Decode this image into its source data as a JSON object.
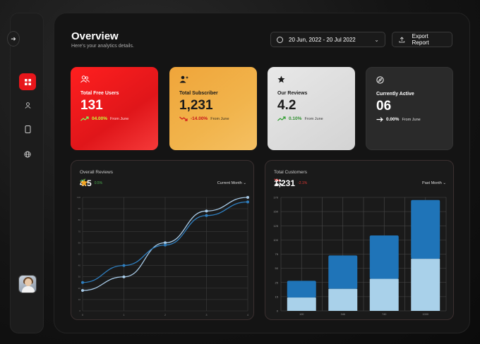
{
  "header": {
    "title": "Overview",
    "subtitle": "Here's your analytics details.",
    "date_range": "20 Jun, 2022 - 20 Jul 2022",
    "export_label": "Export Report"
  },
  "cards": [
    {
      "label": "Total Free Users",
      "value": "131",
      "pct": "04.00%",
      "from": "From June",
      "direction": "up",
      "icon": "users-icon"
    },
    {
      "label": "Total Subscriber",
      "value": "1,231",
      "pct": "-14.00%",
      "from": "From June",
      "direction": "down",
      "icon": "subscriber-icon"
    },
    {
      "label": "Our Reviews",
      "value": "4.2",
      "pct": "0.10%",
      "from": "From June",
      "direction": "up",
      "icon": "star-icon"
    },
    {
      "label": "Currently Active",
      "value": "06",
      "pct": "0.00%",
      "from": "From June",
      "direction": "flat",
      "icon": "compass-icon"
    }
  ],
  "reviews_panel": {
    "title": "Overall Reviews",
    "value": "4.5",
    "change": "0.5%",
    "select": "Current Month"
  },
  "customers_panel": {
    "title": "Total Customers",
    "value": "1,231",
    "change": "-2.1%",
    "select": "Past Month"
  },
  "colors": {
    "accent_red": "#e8161b",
    "accent_orange": "#f1b44c",
    "bar_dark": "#1f74b8",
    "bar_light": "#a9d1ea",
    "line_light": "#a8cbe8",
    "line_dark": "#2f7fc0"
  },
  "chart_data": [
    {
      "type": "line",
      "title": "Overall Reviews",
      "x": [
        "0",
        "1",
        "2",
        "3",
        "4"
      ],
      "ylim": [
        0,
        100
      ],
      "yticks": [
        "0",
        "10",
        "20",
        "30",
        "40",
        "50",
        "60",
        "70",
        "80",
        "90",
        "100"
      ],
      "series": [
        {
          "values": [
            18,
            30,
            60,
            88,
            100
          ]
        },
        {
          "values": [
            25,
            40,
            58,
            84,
            96
          ]
        }
      ]
    },
    {
      "type": "bar",
      "title": "Total Customers",
      "categories": [
        "100",
        "346",
        "740",
        "1000"
      ],
      "ylim": [
        0,
        170
      ],
      "yticks": [
        "0",
        "15",
        "25",
        "50",
        "75",
        "100",
        "125",
        "150",
        "170"
      ],
      "stacks": [
        {
          "values": [
            25,
            50,
            65,
            88
          ]
        },
        {
          "values": [
            20,
            33,
            48,
            78
          ]
        }
      ]
    }
  ]
}
